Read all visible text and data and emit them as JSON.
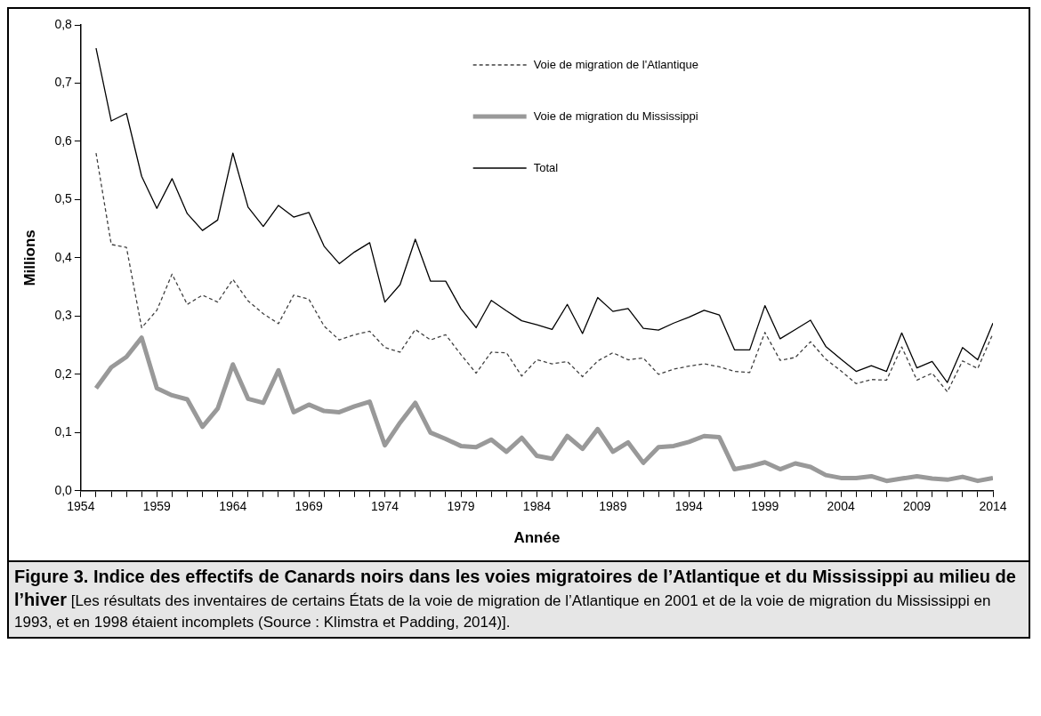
{
  "chart_data": {
    "type": "line",
    "title": "Figure 3. Indice des effectifs de Canards noirs dans les voies migratoires de l’Atlantique et du Mississippi au milieu de l’hiver",
    "xlabel": "Année",
    "ylabel": "Millions",
    "annotations": [
      "[Les résultats des inventaires de certains États de la voie de migration de l’Atlantique en 2001 et de la voie de migration du Mississippi en 1993, et en 1998 étaient incomplets (Source : Klimstra et Padding, 2014)]."
    ],
    "x": [
      1955,
      1956,
      1957,
      1958,
      1959,
      1960,
      1961,
      1962,
      1963,
      1964,
      1965,
      1966,
      1967,
      1968,
      1969,
      1970,
      1971,
      1972,
      1973,
      1974,
      1975,
      1976,
      1977,
      1978,
      1979,
      1980,
      1981,
      1982,
      1983,
      1984,
      1985,
      1986,
      1987,
      1988,
      1989,
      1990,
      1991,
      1992,
      1993,
      1994,
      1995,
      1996,
      1997,
      1998,
      1999,
      2000,
      2001,
      2002,
      2003,
      2004,
      2005,
      2006,
      2007,
      2008,
      2009,
      2010,
      2011,
      2012,
      2013,
      2014
    ],
    "series": [
      {
        "name": "Voie de migration de l'Atlantique",
        "color": "#404040",
        "line_style": "dashed",
        "values": [
          0.58,
          0.423,
          0.418,
          0.28,
          0.31,
          0.372,
          0.32,
          0.336,
          0.324,
          0.363,
          0.326,
          0.304,
          0.287,
          0.336,
          0.329,
          0.283,
          0.259,
          0.268,
          0.274,
          0.246,
          0.238,
          0.277,
          0.259,
          0.268,
          0.234,
          0.202,
          0.238,
          0.237,
          0.197,
          0.225,
          0.218,
          0.222,
          0.196,
          0.223,
          0.237,
          0.225,
          0.228,
          0.2,
          0.209,
          0.214,
          0.218,
          0.213,
          0.205,
          0.203,
          0.272,
          0.224,
          0.229,
          0.256,
          0.226,
          0.206,
          0.184,
          0.191,
          0.19,
          0.247,
          0.19,
          0.202,
          0.17,
          0.223,
          0.21,
          0.27
        ]
      },
      {
        "name": "Voie de migration du Mississippi",
        "color": "#999999",
        "line_style": "solid",
        "values": [
          0.176,
          0.212,
          0.23,
          0.263,
          0.176,
          0.164,
          0.157,
          0.11,
          0.141,
          0.217,
          0.158,
          0.151,
          0.207,
          0.135,
          0.148,
          0.137,
          0.135,
          0.145,
          0.153,
          0.078,
          0.117,
          0.151,
          0.1,
          0.089,
          0.077,
          0.075,
          0.088,
          0.067,
          0.091,
          0.06,
          0.055,
          0.094,
          0.072,
          0.106,
          0.067,
          0.083,
          0.048,
          0.075,
          0.077,
          0.084,
          0.094,
          0.092,
          0.037,
          0.042,
          0.049,
          0.037,
          0.047,
          0.041,
          0.027,
          0.022,
          0.022,
          0.025,
          0.017,
          0.021,
          0.025,
          0.021,
          0.019,
          0.024,
          0.017,
          0.022
        ]
      },
      {
        "name": "Total",
        "color": "#000000",
        "line_style": "solid",
        "values": [
          0.76,
          0.635,
          0.648,
          0.54,
          0.485,
          0.536,
          0.476,
          0.447,
          0.465,
          0.58,
          0.487,
          0.454,
          0.49,
          0.47,
          0.478,
          0.42,
          0.39,
          0.41,
          0.426,
          0.324,
          0.354,
          0.432,
          0.36,
          0.36,
          0.313,
          0.28,
          0.327,
          0.309,
          0.292,
          0.285,
          0.277,
          0.32,
          0.27,
          0.332,
          0.308,
          0.313,
          0.279,
          0.276,
          0.288,
          0.298,
          0.31,
          0.302,
          0.242,
          0.242,
          0.318,
          0.261,
          0.277,
          0.293,
          0.248,
          0.226,
          0.205,
          0.215,
          0.205,
          0.271,
          0.211,
          0.222,
          0.186,
          0.246,
          0.225,
          0.288
        ]
      }
    ],
    "xlim": [
      1954,
      2014
    ],
    "xticks": [
      1954,
      {
        "value": 1955,
        "label": null
      },
      {
        "value": 1956,
        "label": null
      },
      {
        "value": 1957,
        "label": null
      },
      {
        "value": 1958,
        "label": null
      },
      1959,
      {
        "value": 1960,
        "label": null
      },
      {
        "value": 1961,
        "label": null
      },
      {
        "value": 1962,
        "label": null
      },
      {
        "value": 1963,
        "label": null
      },
      1964,
      {
        "value": 1965,
        "label": null
      },
      {
        "value": 1966,
        "label": null
      },
      {
        "value": 1967,
        "label": null
      },
      {
        "value": 1968,
        "label": null
      },
      1969,
      {
        "value": 1970,
        "label": null
      },
      {
        "value": 1971,
        "label": null
      },
      {
        "value": 1972,
        "label": null
      },
      {
        "value": 1973,
        "label": null
      },
      1974,
      {
        "value": 1975,
        "label": null
      },
      {
        "value": 1976,
        "label": null
      },
      {
        "value": 1977,
        "label": null
      },
      {
        "value": 1978,
        "label": null
      },
      1979,
      {
        "value": 1980,
        "label": null
      },
      {
        "value": 1981,
        "label": null
      },
      {
        "value": 1982,
        "label": null
      },
      {
        "value": 1983,
        "label": null
      },
      1984,
      {
        "value": 1985,
        "label": null
      },
      {
        "value": 1986,
        "label": null
      },
      {
        "value": 1987,
        "label": null
      },
      {
        "value": 1988,
        "label": null
      },
      1989,
      {
        "value": 1990,
        "label": null
      },
      {
        "value": 1991,
        "label": null
      },
      {
        "value": 1992,
        "label": null
      },
      {
        "value": 1993,
        "label": null
      },
      1994,
      {
        "value": 1995,
        "label": null
      },
      {
        "value": 1996,
        "label": null
      },
      {
        "value": 1997,
        "label": null
      },
      {
        "value": 1998,
        "label": null
      },
      1999,
      {
        "value": 2000,
        "label": null
      },
      {
        "value": 2001,
        "label": null
      },
      {
        "value": 2002,
        "label": null
      },
      {
        "value": 2003,
        "label": null
      },
      2004,
      {
        "value": 2005,
        "label": null
      },
      {
        "value": 2006,
        "label": null
      },
      {
        "value": 2007,
        "label": null
      },
      {
        "value": 2008,
        "label": null
      },
      2009,
      {
        "value": 2010,
        "label": null
      },
      {
        "value": 2011,
        "label": null
      },
      {
        "value": 2012,
        "label": null
      },
      {
        "value": 2013,
        "label": null
      },
      2014
    ],
    "ylim": [
      0,
      0.8
    ],
    "yticks": [
      {
        "value": 0,
        "label": "0,0"
      },
      {
        "value": 0.1,
        "label": "0,1"
      },
      {
        "value": 0.2,
        "label": "0,2"
      },
      {
        "value": 0.3,
        "label": "0,3"
      },
      {
        "value": 0.4,
        "label": "0,4"
      },
      {
        "value": 0.5,
        "label": "0,5"
      },
      {
        "value": 0.6,
        "label": "0,6"
      },
      {
        "value": 0.7,
        "label": "0,7"
      },
      {
        "value": 0.8,
        "label": "0,8"
      }
    ],
    "grid": false,
    "legend": "top right"
  }
}
